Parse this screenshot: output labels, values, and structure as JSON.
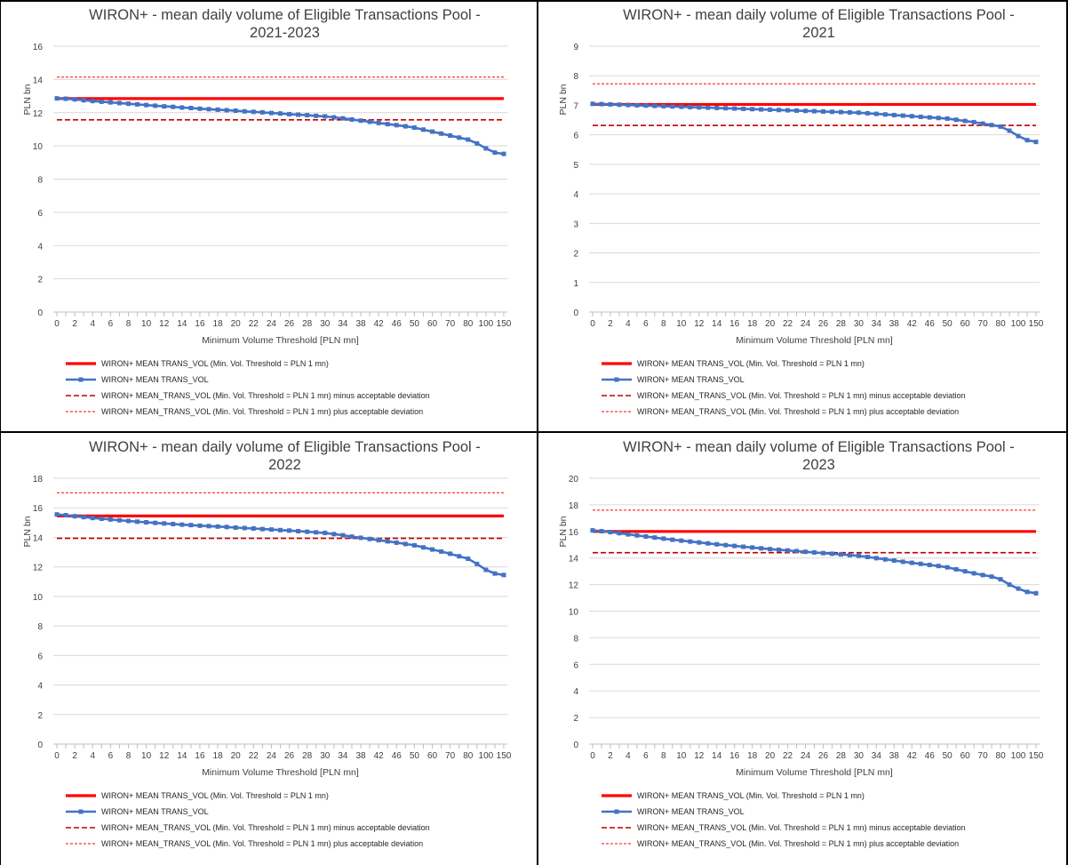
{
  "colors": {
    "baseline": "#ff0000",
    "series": "#4472c4",
    "deviation": "#c00000",
    "grid": "#d9d9d9",
    "axis": "#bfbfbf"
  },
  "common": {
    "xlabel": "Minimum Volume Threshold [PLN mn]",
    "ylabel": "PLN bn",
    "x_tick_labels": [
      "0",
      "2",
      "4",
      "6",
      "8",
      "10",
      "12",
      "14",
      "16",
      "18",
      "20",
      "22",
      "24",
      "26",
      "28",
      "30",
      "34",
      "38",
      "42",
      "46",
      "50",
      "60",
      "70",
      "80",
      "100",
      "150"
    ],
    "legend": [
      "WIRON+ MEAN TRANS_VOL  (Min. Vol. Threshold = PLN 1 mn)",
      "WIRON+ MEAN TRANS_VOL",
      "WIRON+ MEAN_TRANS_VOL (Min. Vol. Threshold = PLN 1 mn) minus acceptable deviation",
      "WIRON+ MEAN_TRANS_VOL (Min. Vol. Threshold = PLN 1 mn) plus acceptable deviation"
    ]
  },
  "chart_data": [
    {
      "type": "line",
      "title_line1": "WIRON+ - mean daily volume of Eligible Transactions Pool -",
      "title_line2": "2021-2023",
      "xlabel": "Minimum Volume Threshold [PLN mn]",
      "ylabel": "PLN bn",
      "ylim": [
        0,
        16
      ],
      "ystep": 2,
      "x": [
        0,
        1,
        2,
        3,
        4,
        5,
        6,
        7,
        8,
        9,
        10,
        11,
        12,
        13,
        14,
        15,
        16,
        17,
        18,
        19,
        20,
        21,
        22,
        23,
        24,
        25,
        26,
        27,
        28,
        29,
        30,
        32,
        34,
        36,
        38,
        40,
        42,
        44,
        46,
        48,
        50,
        55,
        60,
        65,
        70,
        75,
        80,
        90,
        100,
        125,
        150
      ],
      "series": [
        {
          "name": "WIRON+ MEAN TRANS_VOL  (Min. Vol. Threshold = PLN 1 mn)",
          "constant": 12.85
        },
        {
          "name": "WIRON+ MEAN TRANS_VOL",
          "values": [
            12.86,
            12.84,
            12.8,
            12.75,
            12.7,
            12.66,
            12.62,
            12.58,
            12.54,
            12.5,
            12.46,
            12.42,
            12.38,
            12.35,
            12.31,
            12.28,
            12.24,
            12.21,
            12.18,
            12.15,
            12.12,
            12.08,
            12.05,
            12.02,
            11.98,
            11.95,
            11.91,
            11.88,
            11.85,
            11.81,
            11.78,
            11.72,
            11.66,
            11.59,
            11.52,
            11.45,
            11.38,
            11.31,
            11.25,
            11.18,
            11.1,
            10.98,
            10.86,
            10.74,
            10.62,
            10.5,
            10.38,
            10.15,
            9.85,
            9.6,
            9.52
          ]
        },
        {
          "name": "WIRON+ MEAN_TRANS_VOL (Min. Vol. Threshold = PLN 1 mn) minus acceptable deviation",
          "constant": 11.57
        },
        {
          "name": "WIRON+ MEAN_TRANS_VOL (Min. Vol. Threshold = PLN 1 mn) plus acceptable deviation",
          "constant": 14.14
        }
      ]
    },
    {
      "type": "line",
      "title_line1": "WIRON+ - mean daily volume of Eligible Transactions Pool -",
      "title_line2": "2021",
      "xlabel": "Minimum Volume Threshold [PLN mn]",
      "ylabel": "PLN bn",
      "ylim": [
        0,
        9
      ],
      "ystep": 1,
      "x": [
        0,
        1,
        2,
        3,
        4,
        5,
        6,
        7,
        8,
        9,
        10,
        11,
        12,
        13,
        14,
        15,
        16,
        17,
        18,
        19,
        20,
        21,
        22,
        23,
        24,
        25,
        26,
        27,
        28,
        29,
        30,
        32,
        34,
        36,
        38,
        40,
        42,
        44,
        46,
        48,
        50,
        55,
        60,
        65,
        70,
        75,
        80,
        90,
        100,
        125,
        150
      ],
      "series": [
        {
          "name": "WIRON+ MEAN TRANS_VOL  (Min. Vol. Threshold = PLN 1 mn)",
          "constant": 7.03
        },
        {
          "name": "WIRON+ MEAN TRANS_VOL",
          "values": [
            7.05,
            7.04,
            7.03,
            7.02,
            7.01,
            7.0,
            6.99,
            6.98,
            6.97,
            6.96,
            6.95,
            6.94,
            6.93,
            6.92,
            6.91,
            6.9,
            6.89,
            6.88,
            6.87,
            6.86,
            6.85,
            6.84,
            6.83,
            6.82,
            6.81,
            6.8,
            6.79,
            6.78,
            6.77,
            6.76,
            6.75,
            6.73,
            6.71,
            6.69,
            6.67,
            6.65,
            6.63,
            6.61,
            6.59,
            6.57,
            6.55,
            6.51,
            6.47,
            6.43,
            6.38,
            6.33,
            6.28,
            6.14,
            5.96,
            5.82,
            5.76
          ]
        },
        {
          "name": "WIRON+ MEAN_TRANS_VOL (Min. Vol. Threshold = PLN 1 mn) minus acceptable deviation",
          "constant": 6.32
        },
        {
          "name": "WIRON+ MEAN_TRANS_VOL (Min. Vol. Threshold = PLN 1 mn) plus acceptable deviation",
          "constant": 7.73
        }
      ]
    },
    {
      "type": "line",
      "title_line1": "WIRON+ - mean daily volume of Eligible Transactions Pool -",
      "title_line2": "2022",
      "xlabel": "Minimum Volume Threshold [PLN mn]",
      "ylabel": "PLN bn",
      "ylim": [
        0,
        18
      ],
      "ystep": 2,
      "x": [
        0,
        1,
        2,
        3,
        4,
        5,
        6,
        7,
        8,
        9,
        10,
        11,
        12,
        13,
        14,
        15,
        16,
        17,
        18,
        19,
        20,
        21,
        22,
        23,
        24,
        25,
        26,
        27,
        28,
        29,
        30,
        32,
        34,
        36,
        38,
        40,
        42,
        44,
        46,
        48,
        50,
        55,
        60,
        65,
        70,
        75,
        80,
        90,
        100,
        125,
        150
      ],
      "series": [
        {
          "name": "WIRON+ MEAN TRANS_VOL  (Min. Vol. Threshold = PLN 1 mn)",
          "constant": 15.45
        },
        {
          "name": "WIRON+ MEAN TRANS_VOL",
          "values": [
            15.55,
            15.5,
            15.43,
            15.37,
            15.31,
            15.26,
            15.21,
            15.16,
            15.11,
            15.06,
            15.02,
            14.98,
            14.94,
            14.9,
            14.86,
            14.83,
            14.79,
            14.76,
            14.73,
            14.7,
            14.66,
            14.63,
            14.6,
            14.56,
            14.53,
            14.49,
            14.46,
            14.42,
            14.38,
            14.34,
            14.3,
            14.22,
            14.14,
            14.05,
            13.97,
            13.89,
            13.81,
            13.73,
            13.64,
            13.55,
            13.46,
            13.32,
            13.18,
            13.04,
            12.89,
            12.72,
            12.55,
            12.2,
            11.8,
            11.55,
            11.45
          ]
        },
        {
          "name": "WIRON+ MEAN_TRANS_VOL (Min. Vol. Threshold = PLN 1 mn) minus acceptable deviation",
          "constant": 13.93
        },
        {
          "name": "WIRON+ MEAN_TRANS_VOL (Min. Vol. Threshold = PLN 1 mn) plus acceptable deviation",
          "constant": 17.02
        }
      ]
    },
    {
      "type": "line",
      "title_line1": "WIRON+ - mean daily volume of Eligible Transactions Pool -",
      "title_line2": "2023",
      "xlabel": "Minimum Volume Threshold [PLN mn]",
      "ylabel": "PLN bn",
      "ylim": [
        0,
        20
      ],
      "ystep": 2,
      "x": [
        0,
        1,
        2,
        3,
        4,
        5,
        6,
        7,
        8,
        9,
        10,
        11,
        12,
        13,
        14,
        15,
        16,
        17,
        18,
        19,
        20,
        21,
        22,
        23,
        24,
        25,
        26,
        27,
        28,
        29,
        30,
        32,
        34,
        36,
        38,
        40,
        42,
        44,
        46,
        48,
        50,
        55,
        60,
        65,
        70,
        75,
        80,
        90,
        100,
        125,
        150
      ],
      "series": [
        {
          "name": "WIRON+ MEAN TRANS_VOL  (Min. Vol. Threshold = PLN 1 mn)",
          "constant": 16.0
        },
        {
          "name": "WIRON+ MEAN TRANS_VOL",
          "values": [
            16.08,
            16.02,
            15.95,
            15.87,
            15.78,
            15.7,
            15.62,
            15.54,
            15.46,
            15.38,
            15.31,
            15.24,
            15.17,
            15.1,
            15.03,
            14.97,
            14.91,
            14.85,
            14.79,
            14.73,
            14.67,
            14.62,
            14.57,
            14.52,
            14.47,
            14.42,
            14.37,
            14.32,
            14.27,
            14.22,
            14.17,
            14.08,
            13.99,
            13.9,
            13.81,
            13.72,
            13.64,
            13.56,
            13.48,
            13.4,
            13.3,
            13.15,
            13.0,
            12.85,
            12.72,
            12.6,
            12.4,
            12.0,
            11.7,
            11.45,
            11.35
          ]
        },
        {
          "name": "WIRON+ MEAN_TRANS_VOL (Min. Vol. Threshold = PLN 1 mn) minus acceptable deviation",
          "constant": 14.4
        },
        {
          "name": "WIRON+ MEAN_TRANS_VOL (Min. Vol. Threshold = PLN 1 mn) plus acceptable deviation",
          "constant": 17.6
        }
      ]
    }
  ]
}
